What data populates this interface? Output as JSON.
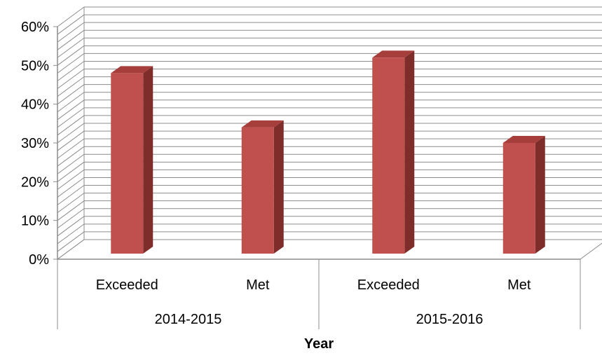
{
  "chart_data": {
    "type": "bar",
    "style": "3d-clustered-column",
    "xlabel": "Year",
    "ylabel": "",
    "ylim": [
      0,
      0.6
    ],
    "yticks": [
      "0%",
      "10%",
      "20%",
      "30%",
      "40%",
      "50%",
      "60%"
    ],
    "y_tick_values": [
      0,
      0.1,
      0.2,
      0.3,
      0.4,
      0.5,
      0.6
    ],
    "grid": true,
    "legend": "none",
    "groups": [
      {
        "label": "2014-2015",
        "bars": [
          {
            "category": "Exceeded",
            "value": 0.48
          },
          {
            "category": "Met",
            "value": 0.34
          }
        ]
      },
      {
        "label": "2015-2016",
        "bars": [
          {
            "category": "Exceeded",
            "value": 0.52
          },
          {
            "category": "Met",
            "value": 0.3
          }
        ]
      }
    ],
    "colors": {
      "bar_front": "#c0504d",
      "bar_side": "#7f2d2b",
      "bar_top": "#a63f3c",
      "grid": "#8c8c8c",
      "axis": "#8c8c8c"
    }
  }
}
